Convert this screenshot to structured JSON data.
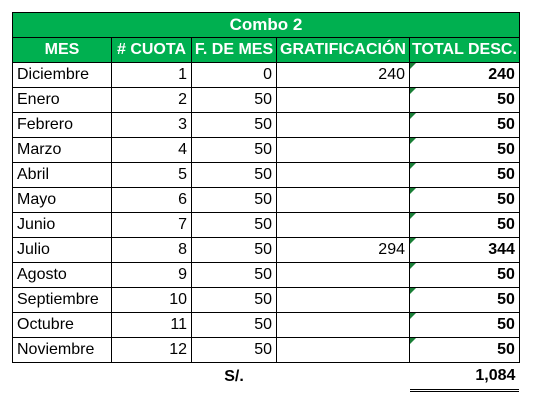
{
  "title": "Combo 2",
  "headers": {
    "mes": "MES",
    "cuota": "# CUOTA",
    "fmes": "F. DE MES",
    "grat": "GRATIFICACIÓN",
    "total": "TOTAL DESC."
  },
  "rows": [
    {
      "mes": "Diciembre",
      "cuota": "1",
      "fmes": "0",
      "grat": "240",
      "total": "240"
    },
    {
      "mes": "Enero",
      "cuota": "2",
      "fmes": "50",
      "grat": "",
      "total": "50"
    },
    {
      "mes": "Febrero",
      "cuota": "3",
      "fmes": "50",
      "grat": "",
      "total": "50"
    },
    {
      "mes": "Marzo",
      "cuota": "4",
      "fmes": "50",
      "grat": "",
      "total": "50"
    },
    {
      "mes": "Abril",
      "cuota": "5",
      "fmes": "50",
      "grat": "",
      "total": "50"
    },
    {
      "mes": "Mayo",
      "cuota": "6",
      "fmes": "50",
      "grat": "",
      "total": "50"
    },
    {
      "mes": "Junio",
      "cuota": "7",
      "fmes": "50",
      "grat": "",
      "total": "50"
    },
    {
      "mes": "Julio",
      "cuota": "8",
      "fmes": "50",
      "grat": "294",
      "total": "344"
    },
    {
      "mes": "Agosto",
      "cuota": "9",
      "fmes": "50",
      "grat": "",
      "total": "50"
    },
    {
      "mes": "Septiembre",
      "cuota": "10",
      "fmes": "50",
      "grat": "",
      "total": "50"
    },
    {
      "mes": "Octubre",
      "cuota": "11",
      "fmes": "50",
      "grat": "",
      "total": "50"
    },
    {
      "mes": "Noviembre",
      "cuota": "12",
      "fmes": "50",
      "grat": "",
      "total": "50"
    }
  ],
  "summary": {
    "label": "S/.",
    "total": "1,084"
  },
  "colors": {
    "header_bg": "#00b050",
    "header_text": "#ffffff",
    "flag": "#1a7f37"
  }
}
